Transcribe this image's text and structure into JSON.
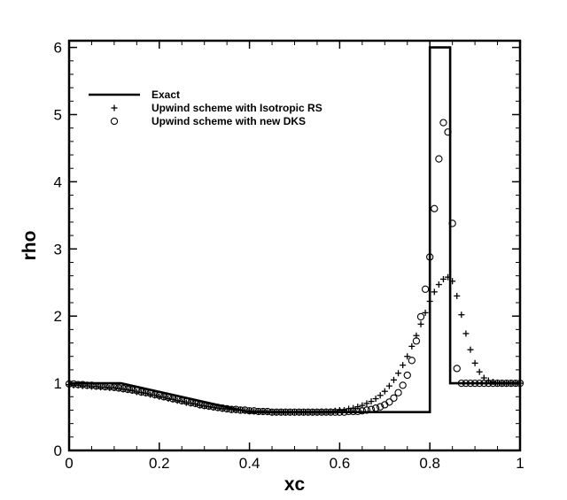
{
  "chart_data": {
    "type": "scatter",
    "title": "",
    "xlabel": "xc",
    "ylabel": "rho",
    "xlim": [
      0,
      1
    ],
    "ylim": [
      0,
      6.1
    ],
    "grid": false,
    "legend_position": "top-left",
    "x_ticks": [
      0,
      0.2,
      0.4,
      0.6,
      0.8,
      1
    ],
    "x_tick_labels": [
      "0",
      "0.2",
      "0.4",
      "0.6",
      "0.8",
      "1"
    ],
    "y_ticks": [
      0,
      1,
      2,
      3,
      4,
      5,
      6
    ],
    "y_tick_labels": [
      "0",
      "1",
      "2",
      "3",
      "4",
      "5",
      "6"
    ],
    "series": [
      {
        "name": "Exact",
        "style": "line",
        "color": "#000000",
        "x": [
          0,
          0.115,
          0.4,
          0.8,
          0.8,
          0.845,
          0.845,
          1.0
        ],
        "y": [
          1.0,
          1.0,
          0.57,
          0.57,
          6.0,
          6.0,
          1.0,
          1.0
        ]
      },
      {
        "name": "Upwind scheme with Isotropic RS",
        "style": "plus",
        "color": "#000000",
        "x": [
          0.0,
          0.01,
          0.02,
          0.03,
          0.04,
          0.05,
          0.06,
          0.07,
          0.08,
          0.09,
          0.1,
          0.11,
          0.12,
          0.13,
          0.14,
          0.15,
          0.16,
          0.17,
          0.18,
          0.19,
          0.2,
          0.21,
          0.22,
          0.23,
          0.24,
          0.25,
          0.26,
          0.27,
          0.28,
          0.29,
          0.3,
          0.31,
          0.32,
          0.33,
          0.34,
          0.35,
          0.36,
          0.37,
          0.38,
          0.39,
          0.4,
          0.41,
          0.42,
          0.43,
          0.44,
          0.45,
          0.46,
          0.47,
          0.48,
          0.49,
          0.5,
          0.51,
          0.52,
          0.53,
          0.54,
          0.55,
          0.56,
          0.57,
          0.58,
          0.59,
          0.6,
          0.61,
          0.62,
          0.63,
          0.64,
          0.65,
          0.66,
          0.67,
          0.68,
          0.69,
          0.7,
          0.71,
          0.72,
          0.73,
          0.74,
          0.75,
          0.76,
          0.77,
          0.78,
          0.79,
          0.8,
          0.81,
          0.82,
          0.83,
          0.84,
          0.85,
          0.86,
          0.87,
          0.88,
          0.89,
          0.9,
          0.91,
          0.92,
          0.93,
          0.94,
          0.95,
          0.96,
          0.97,
          0.98,
          0.99,
          1.0
        ],
        "y": [
          0.98,
          0.97,
          0.97,
          0.96,
          0.96,
          0.95,
          0.95,
          0.94,
          0.94,
          0.93,
          0.93,
          0.92,
          0.91,
          0.9,
          0.89,
          0.87,
          0.86,
          0.85,
          0.83,
          0.82,
          0.8,
          0.79,
          0.77,
          0.76,
          0.74,
          0.73,
          0.71,
          0.7,
          0.69,
          0.67,
          0.66,
          0.65,
          0.64,
          0.63,
          0.62,
          0.62,
          0.61,
          0.6,
          0.6,
          0.59,
          0.59,
          0.58,
          0.58,
          0.58,
          0.57,
          0.57,
          0.57,
          0.57,
          0.57,
          0.57,
          0.57,
          0.57,
          0.57,
          0.57,
          0.57,
          0.57,
          0.58,
          0.58,
          0.58,
          0.59,
          0.6,
          0.6,
          0.62,
          0.63,
          0.65,
          0.67,
          0.7,
          0.73,
          0.77,
          0.82,
          0.88,
          0.96,
          1.05,
          1.15,
          1.27,
          1.4,
          1.55,
          1.71,
          1.88,
          2.05,
          2.22,
          2.36,
          2.47,
          2.55,
          2.58,
          2.52,
          2.3,
          2.02,
          1.74,
          1.5,
          1.3,
          1.17,
          1.08,
          1.04,
          1.02,
          1.01,
          1.0,
          1.0,
          1.0,
          1.0,
          1.0
        ]
      },
      {
        "name": "Upwind scheme with new DKS",
        "style": "circle",
        "color": "#000000",
        "x": [
          0.0,
          0.01,
          0.02,
          0.03,
          0.04,
          0.05,
          0.06,
          0.07,
          0.08,
          0.09,
          0.1,
          0.11,
          0.12,
          0.13,
          0.14,
          0.15,
          0.16,
          0.17,
          0.18,
          0.19,
          0.2,
          0.21,
          0.22,
          0.23,
          0.24,
          0.25,
          0.26,
          0.27,
          0.28,
          0.29,
          0.3,
          0.31,
          0.32,
          0.33,
          0.34,
          0.35,
          0.36,
          0.37,
          0.38,
          0.39,
          0.4,
          0.41,
          0.42,
          0.43,
          0.44,
          0.45,
          0.46,
          0.47,
          0.48,
          0.49,
          0.5,
          0.51,
          0.52,
          0.53,
          0.54,
          0.55,
          0.56,
          0.57,
          0.58,
          0.59,
          0.6,
          0.61,
          0.62,
          0.63,
          0.64,
          0.65,
          0.66,
          0.67,
          0.68,
          0.69,
          0.7,
          0.71,
          0.72,
          0.73,
          0.74,
          0.75,
          0.76,
          0.77,
          0.78,
          0.79,
          0.8,
          0.81,
          0.82,
          0.83,
          0.84,
          0.85,
          0.86,
          0.87,
          0.88,
          0.89,
          0.9,
          0.91,
          0.92,
          0.93,
          0.94,
          0.95,
          0.96,
          0.97,
          0.98,
          0.99,
          1.0
        ],
        "y": [
          0.99,
          0.99,
          0.98,
          0.98,
          0.97,
          0.97,
          0.96,
          0.96,
          0.95,
          0.95,
          0.94,
          0.93,
          0.92,
          0.91,
          0.9,
          0.89,
          0.87,
          0.86,
          0.85,
          0.83,
          0.82,
          0.8,
          0.79,
          0.77,
          0.76,
          0.74,
          0.73,
          0.71,
          0.7,
          0.68,
          0.67,
          0.66,
          0.65,
          0.64,
          0.63,
          0.62,
          0.61,
          0.61,
          0.6,
          0.6,
          0.59,
          0.59,
          0.58,
          0.58,
          0.58,
          0.57,
          0.57,
          0.57,
          0.57,
          0.57,
          0.57,
          0.57,
          0.57,
          0.57,
          0.57,
          0.57,
          0.57,
          0.57,
          0.57,
          0.57,
          0.57,
          0.57,
          0.58,
          0.58,
          0.58,
          0.59,
          0.6,
          0.61,
          0.63,
          0.65,
          0.68,
          0.72,
          0.78,
          0.86,
          0.97,
          1.12,
          1.34,
          1.63,
          1.99,
          2.4,
          2.88,
          3.6,
          4.34,
          4.88,
          4.74,
          3.38,
          1.22,
          1.0,
          1.0,
          1.0,
          1.0,
          1.0,
          1.0,
          1.0,
          1.0,
          1.0,
          1.0,
          1.0,
          1.0,
          1.0,
          1.0
        ]
      }
    ]
  }
}
